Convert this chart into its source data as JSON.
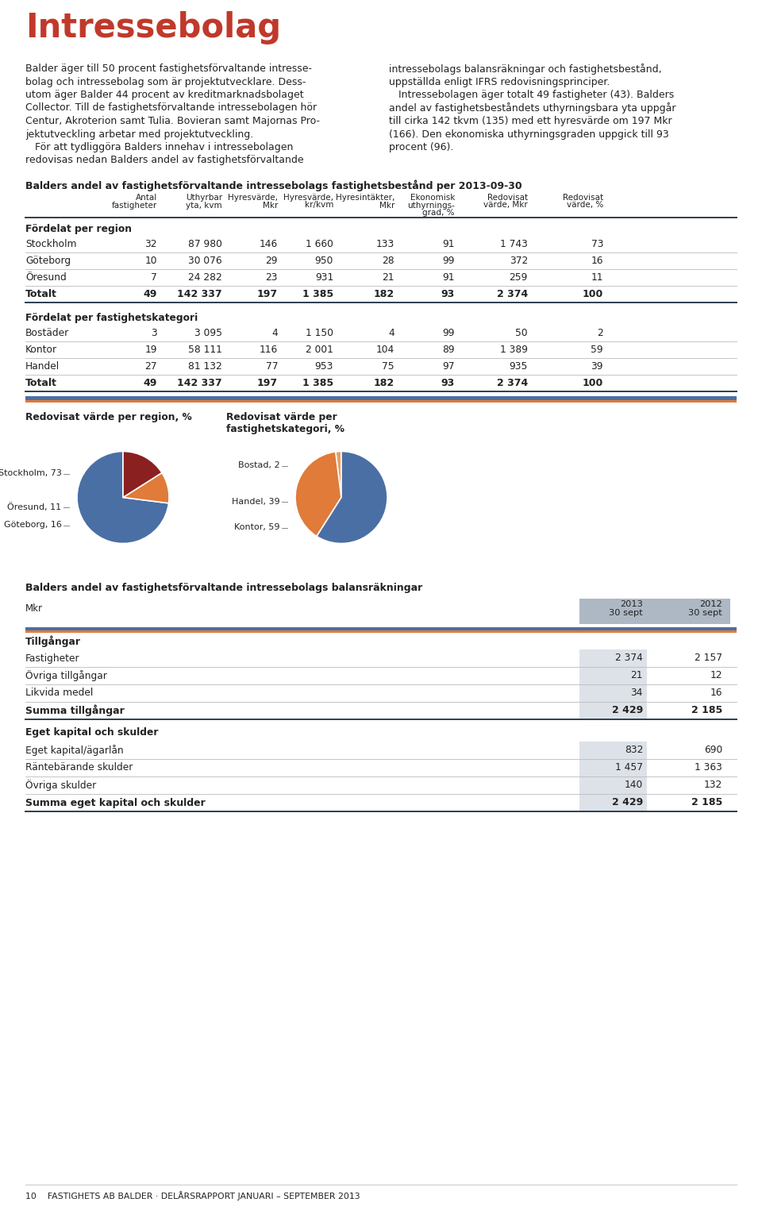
{
  "title": "Intressebolag",
  "title_color": "#c0392b",
  "body_text_left": "Balder äger till 50 procent fastighetsförvaltande intresse-\nbolag och intressebolag som är projektutvecklare. Dess-\nutom äger Balder 44 procent av kreditmarknadsbolaget\nCollector. Till de fastighetsförvaltande intressebolagen hör\nCentur, Akroterion samt Tulia. Bovieran samt Majornas Pro-\njektutveckling arbetar med projektutveckling.\n   För att tydliggöra Balders innehav i intressebolagen\nredovisas nedan Balders andel av fastighetsförvaltande",
  "body_text_right": "intressebolags balansräkningar och fastighetsbestånd,\nuppställda enligt IFRS redovisningsprinciper.\n   Intressebolagen äger totalt 49 fastigheter (43). Balders\nandel av fastighetsbeståndets uthyrningsbara yta uppgår\ntill cirka 142 tkvm (135) med ett hyresvärde om 197 Mkr\n(166). Den ekonomiska uthyrningsgraden uppgick till 93\nprocent (96).",
  "table1_title": "Balders andel av fastighetsförvaltande intressebolags fastighetsbestånd per 2013-09-30",
  "table1_headers": [
    "Antal\nfastigheter",
    "Uthyrbar\nyta, kvm",
    "Hyresvärde,\nMkr",
    "Hyresvärde,\nkr/kvm",
    "Hyresintäkter,\nMkr",
    "Ekonomisk\nuthyrnings-\ngrad, %",
    "Redovisat\nvärde, Mkr",
    "Redovisat\nvärde, %"
  ],
  "table1_section1_label": "Fördelat per region",
  "table1_section1_rows": [
    [
      "Stockholm",
      "32",
      "87 980",
      "146",
      "1 660",
      "133",
      "91",
      "1 743",
      "73"
    ],
    [
      "Göteborg",
      "10",
      "30 076",
      "29",
      "950",
      "28",
      "99",
      "372",
      "16"
    ],
    [
      "Öresund",
      "7",
      "24 282",
      "23",
      "931",
      "21",
      "91",
      "259",
      "11"
    ],
    [
      "Totalt",
      "49",
      "142 337",
      "197",
      "1 385",
      "182",
      "93",
      "2 374",
      "100"
    ]
  ],
  "table1_section2_label": "Fördelat per fastighetskategori",
  "table1_section2_rows": [
    [
      "Bostäder",
      "3",
      "3 095",
      "4",
      "1 150",
      "4",
      "99",
      "50",
      "2"
    ],
    [
      "Kontor",
      "19",
      "58 111",
      "116",
      "2 001",
      "104",
      "89",
      "1 389",
      "59"
    ],
    [
      "Handel",
      "27",
      "81 132",
      "77",
      "953",
      "75",
      "97",
      "935",
      "39"
    ],
    [
      "Totalt",
      "49",
      "142 337",
      "197",
      "1 385",
      "182",
      "93",
      "2 374",
      "100"
    ]
  ],
  "pie1_title": "Redovisat värde per region, %",
  "pie1_labels": [
    "Stockholm, 73",
    "Öresund, 11",
    "Göteborg, 16"
  ],
  "pie1_values": [
    73,
    11,
    16
  ],
  "pie1_colors": [
    "#4a6fa5",
    "#e07b39",
    "#8b2020"
  ],
  "pie2_title": "Redovisat värde per\nfastighetskategori, %",
  "pie2_labels": [
    "Bostad, 2",
    "Handel, 39",
    "Kontor, 59"
  ],
  "pie2_values": [
    2,
    39,
    59
  ],
  "pie2_colors": [
    "#e8a060",
    "#e07b39",
    "#4a6fa5"
  ],
  "table2_title": "Balders andel av fastighetsförvaltande intressebolags balansräkningar",
  "table2_mkr_label": "Mkr",
  "table2_col1_header": "2013\n30 sept",
  "table2_col2_header": "2012\n30 sept",
  "table2_section1_label": "Tillgångar",
  "table2_section1_rows": [
    [
      "Fastigheter",
      "2 374",
      "2 157"
    ],
    [
      "Övriga tillgångar",
      "21",
      "12"
    ],
    [
      "Likvida medel",
      "34",
      "16"
    ],
    [
      "Summa tillgångar",
      "2 429",
      "2 185"
    ]
  ],
  "table2_section2_label": "Eget kapital och skulder",
  "table2_section2_rows": [
    [
      "Eget kapital/ägarlån",
      "832",
      "690"
    ],
    [
      "Räntebärande skulder",
      "1 457",
      "1 363"
    ],
    [
      "Övriga skulder",
      "140",
      "132"
    ],
    [
      "Summa eget kapital och skulder",
      "2 429",
      "2 185"
    ]
  ],
  "footer_text": "10    FASTIGHETS AB BALDER · DELÅRSRAPPORT JANUARI – SEPTEMBER 2013",
  "bg_color": "#ffffff",
  "text_color": "#222222",
  "divider_color1": "#4a6fa5",
  "divider_color2": "#e07b39"
}
